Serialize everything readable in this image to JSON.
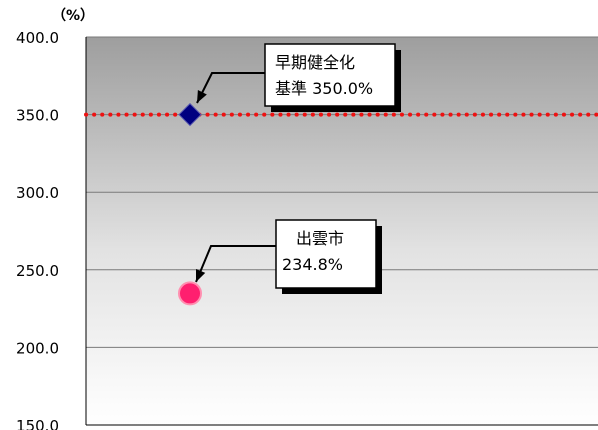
{
  "chart_data": {
    "type": "scatter",
    "unit_label": "（%）",
    "ylim": [
      150,
      400
    ],
    "y_ticks": [
      150,
      200,
      250,
      300,
      350,
      400
    ],
    "y_tick_labels": [
      "150.0",
      "200.0",
      "250.0",
      "300.0",
      "350.0",
      "400.0"
    ],
    "grid": true,
    "reference_line": {
      "value": 350,
      "color": "#ee1111"
    },
    "points": [
      {
        "value": 350.0,
        "marker": "diamond",
        "color": "#000080",
        "label_lines": [
          "早期健全化",
          "基準 350.0%"
        ]
      },
      {
        "value": 234.8,
        "marker": "circle",
        "color": "#ff1f6f",
        "label_lines": [
          "出雲市",
          "234.8%"
        ]
      }
    ]
  }
}
